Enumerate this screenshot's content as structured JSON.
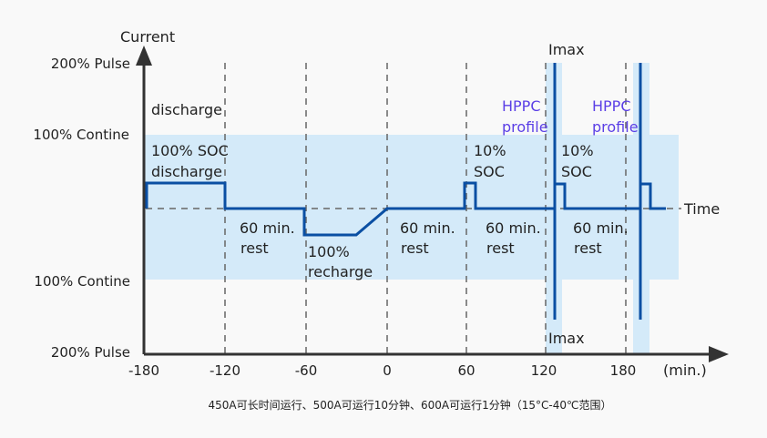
{
  "axes": {
    "y_title": "Current",
    "x_title": "Time",
    "x_unit": "(min.)",
    "y_labels": [
      "200% Pulse",
      "100% Contine",
      "100% Contine",
      "200% Pulse"
    ],
    "x_ticks": [
      "-180",
      "-120",
      "-60",
      "0",
      "60",
      "120",
      "180"
    ]
  },
  "annotations": {
    "discharge": "discharge",
    "soc_discharge_1": "100% SOC",
    "soc_discharge_2": "discharge",
    "rest1_1": "60 min.",
    "rest1_2": "rest",
    "recharge_1": "100%",
    "recharge_2": "recharge",
    "rest2_1": "60 min.",
    "rest2_2": "rest",
    "soc10a_1": "10%",
    "soc10a_2": "SOC",
    "rest3_1": "60 min.",
    "rest3_2": "rest",
    "hppc1_1": "HPPC",
    "hppc1_2": "profile",
    "imax_top": "Imax",
    "imax_bottom": "Imax",
    "soc10b_1": "10%",
    "soc10b_2": "SOC",
    "rest4_1": "60 min.",
    "rest4_2": "rest",
    "hppc2_1": "HPPC",
    "hppc2_2": "profile"
  },
  "caption": "450A可长时间运行、500A可运行10分钟、600A可运行1分钟（15°C-40℃范围）",
  "colors": {
    "trace": "#0a4fa3",
    "band": "#d4eaf9",
    "hppc_text": "#5b3fe6",
    "axis": "#333333"
  }
}
